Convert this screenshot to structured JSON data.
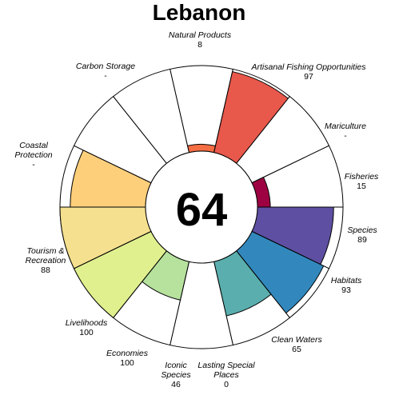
{
  "chart_data": {
    "type": "flower",
    "title": "Lebanon",
    "score": "64",
    "max_value": 100,
    "petals": [
      {
        "label": "Natural Products",
        "value_text": "8",
        "value": 8,
        "color": "#F46D43"
      },
      {
        "label": "Artisanal Fishing Opportunities",
        "value_text": "97",
        "value": 97,
        "color": "#E8584B"
      },
      {
        "label": "Mariculture",
        "value_text": "-",
        "value": null,
        "color": "#D53E4F"
      },
      {
        "label": "Fisheries",
        "value_text": "15",
        "value": 15,
        "color": "#9E0142"
      },
      {
        "label": "Species",
        "value_text": "89",
        "value": 89,
        "color": "#5E4FA2"
      },
      {
        "label": "Habitats",
        "value_text": "93",
        "value": 93,
        "color": "#3288BD"
      },
      {
        "label": "Clean Waters",
        "value_text": "65",
        "value": 65,
        "color": "#5AAFAE"
      },
      {
        "label": "Lasting Special Places",
        "value_text": "0",
        "value": 0,
        "color": "#ABDDA4"
      },
      {
        "label": "Iconic Species",
        "value_text": "46",
        "value": 46,
        "color": "#B6E29D"
      },
      {
        "label": "Economies",
        "value_text": "100",
        "value": 100,
        "color": "#E0F08E"
      },
      {
        "label": "Livelihoods",
        "value_text": "100",
        "value": 100,
        "color": "#F5E08F"
      },
      {
        "label": "Tourism & Recreation",
        "value_text": "88",
        "value": 88,
        "color": "#FDCF7A"
      },
      {
        "label": "Coastal Protection",
        "value_text": "-",
        "value": null,
        "color": "#FDBB74"
      },
      {
        "label": "Carbon Storage",
        "value_text": "-",
        "value": null,
        "color": "#FDA866"
      }
    ]
  }
}
